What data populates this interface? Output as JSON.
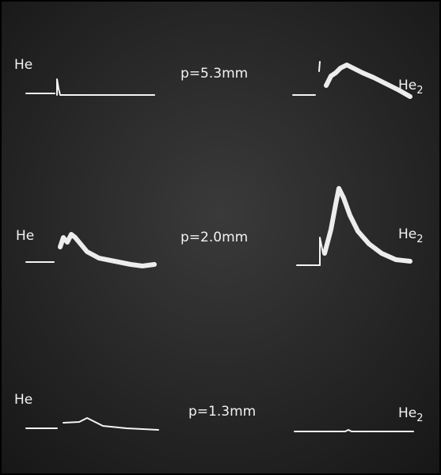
{
  "rows": [
    {
      "left_label": "He",
      "pressure": "p=5.3mm",
      "right_label": "He",
      "right_subscript": "2"
    },
    {
      "left_label": "He",
      "pressure": "p=2.0mm",
      "right_label": "He",
      "right_subscript": "2"
    },
    {
      "left_label": "He",
      "pressure": "p=1.3mm",
      "right_label": "He",
      "right_subscript": "2"
    }
  ]
}
